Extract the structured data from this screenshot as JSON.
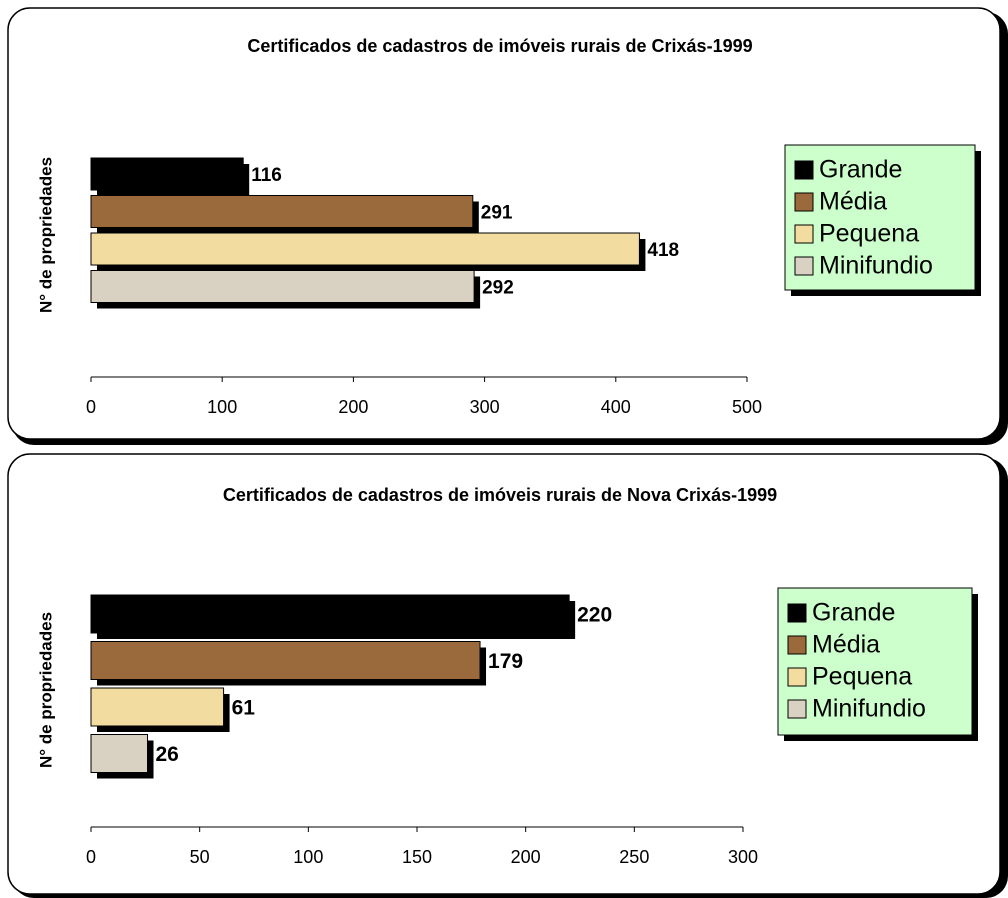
{
  "chart_data": [
    {
      "type": "bar",
      "title": "Certificados de cadastros de imóveis rurais de Crixás-1999",
      "y_label": "N° de propriedades",
      "series": [
        {
          "name": "Grande",
          "color": "#000000",
          "values": [
            116
          ]
        },
        {
          "name": "Média",
          "color": "#9b6a3c",
          "values": [
            291
          ]
        },
        {
          "name": "Pequena",
          "color": "#f3dca0",
          "values": [
            418
          ]
        },
        {
          "name": "Minifundio",
          "color": "#d9d1c2",
          "values": [
            292
          ]
        }
      ],
      "xlim": [
        0,
        500
      ],
      "xticks": [
        0,
        100,
        200,
        300,
        400,
        500
      ]
    },
    {
      "type": "bar",
      "title": "Certificados de cadastros de imóveis rurais de Nova Crixás-1999",
      "y_label": "N° de propriedades",
      "series": [
        {
          "name": "Grande",
          "color": "#000000",
          "values": [
            220
          ]
        },
        {
          "name": "Média",
          "color": "#9b6a3c",
          "values": [
            179
          ]
        },
        {
          "name": "Pequena",
          "color": "#f3dca0",
          "values": [
            61
          ]
        },
        {
          "name": "Minifundio",
          "color": "#d9d1c2",
          "values": [
            26
          ]
        }
      ],
      "xlim": [
        0,
        300
      ],
      "xticks": [
        0,
        50,
        100,
        150,
        200,
        250,
        300
      ]
    }
  ]
}
